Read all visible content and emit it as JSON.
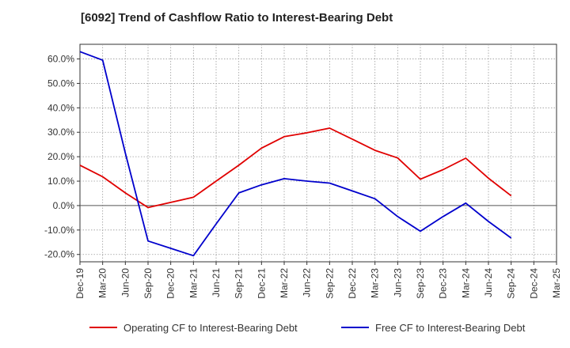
{
  "chart_data": {
    "type": "line",
    "title": "[6092]  Trend of Cashflow Ratio to Interest-Bearing Debt",
    "xlabel": "",
    "ylabel": "",
    "categories": [
      "Dec-19",
      "Mar-20",
      "Jun-20",
      "Sep-20",
      "Dec-20",
      "Mar-21",
      "Jun-21",
      "Sep-21",
      "Dec-21",
      "Mar-22",
      "Jun-22",
      "Sep-22",
      "Dec-22",
      "Mar-23",
      "Jun-23",
      "Sep-23",
      "Dec-23",
      "Mar-24",
      "Jun-24",
      "Sep-24",
      "Dec-24",
      "Mar-25"
    ],
    "ylim": [
      -23,
      66
    ],
    "yticks": [
      60,
      50,
      40,
      30,
      20,
      10,
      0,
      -10,
      -20
    ],
    "ytick_labels": [
      "60.0%",
      "50.0%",
      "40.0%",
      "30.0%",
      "20.0%",
      "10.0%",
      "0.0%",
      "-10.0%",
      "-20.0%"
    ],
    "grid": true,
    "legend_position": "bottom",
    "series": [
      {
        "name": "Operating CF to Interest-Bearing Debt",
        "color": "#e00000",
        "values": [
          16.5,
          11.8,
          5.2,
          -0.8,
          1.3,
          3.4,
          10.0,
          16.5,
          23.5,
          28.2,
          29.8,
          31.7,
          27.2,
          22.6,
          19.5,
          10.8,
          14.7,
          19.4,
          11.2,
          4.0,
          null,
          null
        ]
      },
      {
        "name": "Free CF to Interest-Bearing Debt",
        "color": "#0000cc",
        "values": [
          63.0,
          59.5,
          21.5,
          -14.5,
          -17.5,
          -20.5,
          -7.5,
          5.2,
          8.5,
          11.0,
          10.0,
          9.2,
          6.0,
          2.8,
          -4.5,
          -10.5,
          -4.5,
          1.0,
          -6.5,
          -13.3,
          null,
          null
        ]
      }
    ]
  }
}
